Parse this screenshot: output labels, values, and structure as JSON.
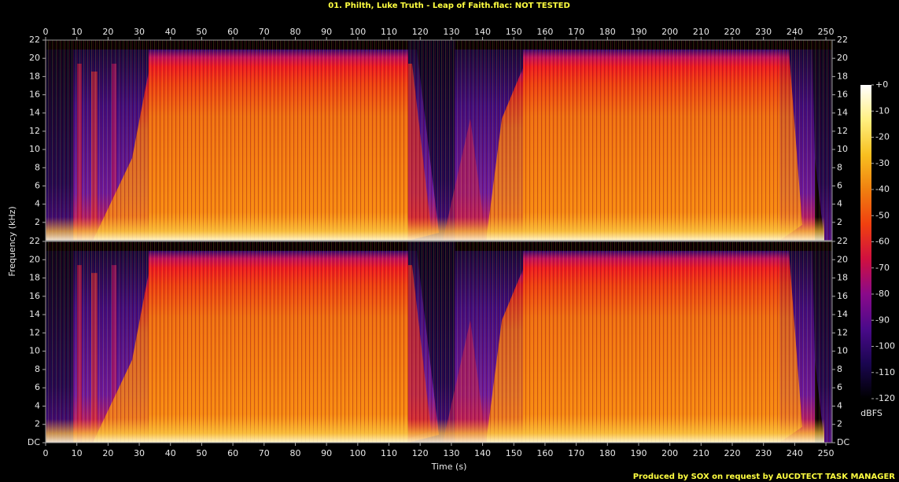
{
  "chart_data": {
    "type": "spectrogram",
    "title": "01. Philth, Luke Truth - Leap of Faith.flac: NOT TESTED",
    "x_label": "Time (s)",
    "y_label": "Frequency (kHz)",
    "footer": "Produced by SOX on request by AUCDTECT TASK MANAGER",
    "xlim": [
      0,
      252
    ],
    "xticks": [
      0,
      10,
      20,
      30,
      40,
      50,
      60,
      70,
      80,
      90,
      100,
      110,
      120,
      130,
      140,
      150,
      160,
      170,
      180,
      190,
      200,
      210,
      220,
      230,
      240,
      250
    ],
    "channels": [
      {
        "ylim": [
          0,
          22
        ],
        "yticks": [
          2,
          4,
          6,
          8,
          10,
          12,
          14,
          16,
          18,
          20,
          22
        ]
      },
      {
        "ylim": [
          0,
          22
        ],
        "yticks": [
          {
            "value": 0,
            "label": "DC"
          },
          2,
          4,
          6,
          8,
          10,
          12,
          14,
          16,
          18,
          20,
          22
        ]
      }
    ],
    "colorbar": {
      "label": "dBFS",
      "lim": [
        -120,
        0
      ],
      "ticks": [
        {
          "value": 0,
          "label": "+0"
        },
        -10,
        -20,
        -30,
        -40,
        -50,
        -60,
        -70,
        -80,
        -90,
        -100,
        -110,
        -120
      ],
      "colormap": [
        "#000000",
        "#1a0650",
        "#4a0a8a",
        "#8a0a8a",
        "#d01040",
        "#f04010",
        "#f08010",
        "#f8c020",
        "#fff080",
        "#ffffff"
      ]
    }
  }
}
